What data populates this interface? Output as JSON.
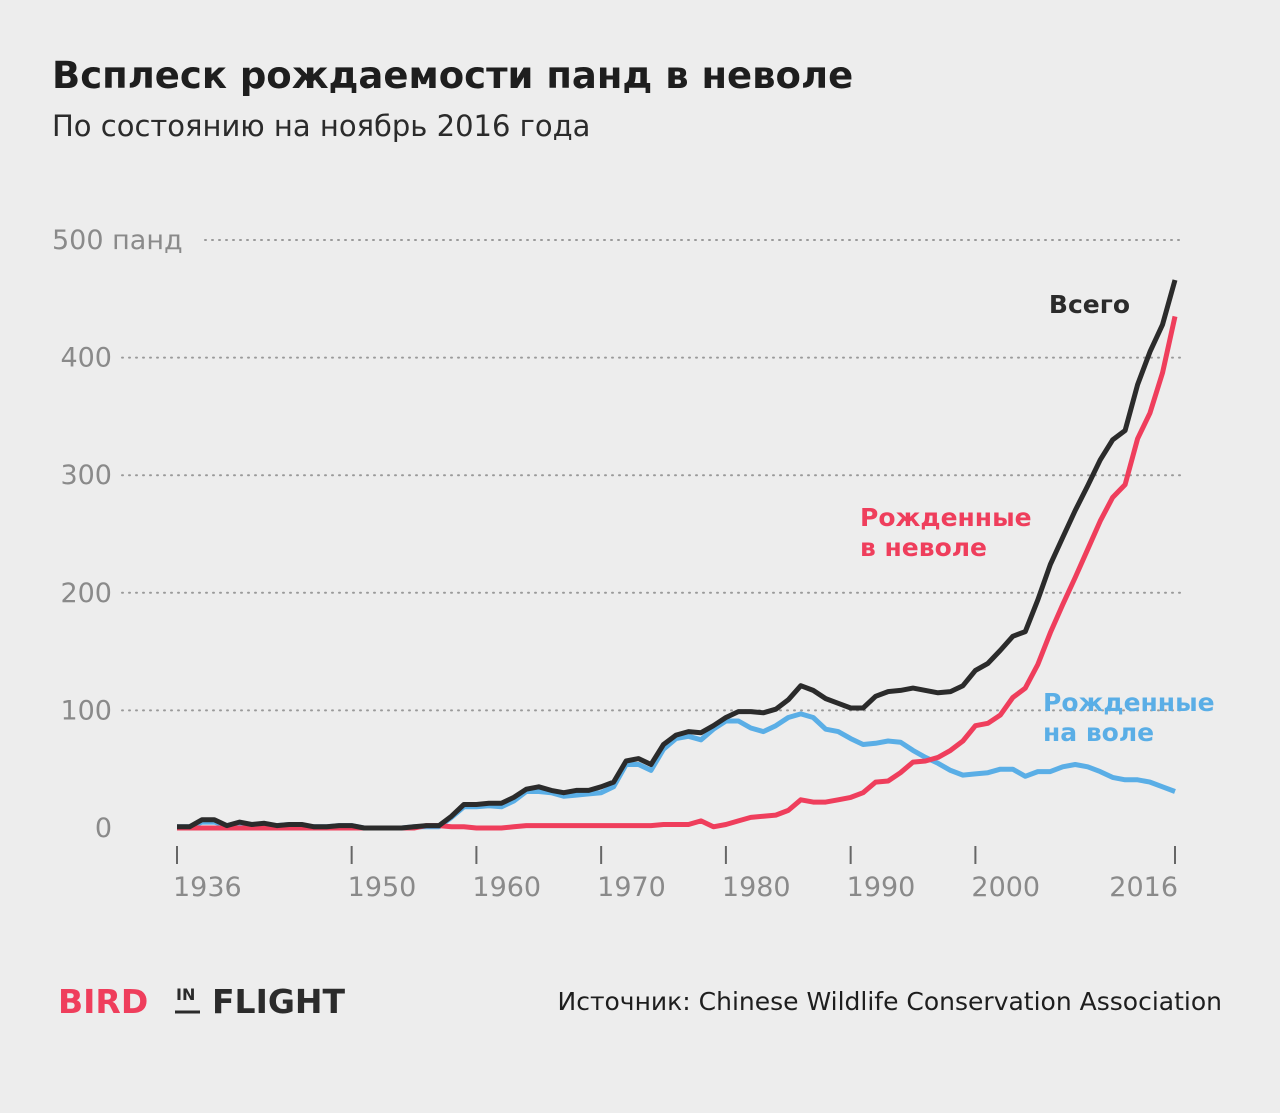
{
  "chart_data": {
    "type": "line",
    "title": "Всплеск рождаемости панд в неволе",
    "subtitle": "По состоянию на ноябрь 2016 года",
    "source": "Источник: Chinese Wildlife Conservation Association",
    "logo": {
      "first": "BIRD",
      "middle": "IN",
      "last": "FLIGHT"
    },
    "x": [
      1936,
      1937,
      1938,
      1939,
      1940,
      1941,
      1942,
      1943,
      1944,
      1945,
      1946,
      1947,
      1948,
      1949,
      1950,
      1951,
      1952,
      1953,
      1954,
      1955,
      1956,
      1957,
      1958,
      1959,
      1960,
      1961,
      1962,
      1963,
      1964,
      1965,
      1966,
      1967,
      1968,
      1969,
      1970,
      1971,
      1972,
      1973,
      1974,
      1975,
      1976,
      1977,
      1978,
      1979,
      1980,
      1981,
      1982,
      1983,
      1984,
      1985,
      1986,
      1987,
      1988,
      1989,
      1990,
      1991,
      1992,
      1993,
      1994,
      1995,
      1996,
      1997,
      1998,
      1999,
      2000,
      2001,
      2002,
      2003,
      2004,
      2005,
      2006,
      2007,
      2008,
      2009,
      2010,
      2011,
      2012,
      2013,
      2014,
      2015,
      2016
    ],
    "xlim": [
      1936,
      2016
    ],
    "xticks": [
      1936,
      1950,
      1960,
      1970,
      1980,
      1990,
      2000,
      2016
    ],
    "ylim": [
      0,
      500
    ],
    "yticks": [
      0,
      100,
      200,
      300,
      400,
      {
        "value": 500,
        "label": "500 панд"
      }
    ],
    "grid": true,
    "series": [
      {
        "name": "Рожденные на воле",
        "color": "#5aaee6",
        "values": [
          1,
          1,
          5,
          5,
          2,
          4,
          2,
          3,
          2,
          3,
          2,
          1,
          1,
          2,
          2,
          0,
          0,
          0,
          0,
          1,
          1,
          1,
          9,
          18,
          18,
          19,
          18,
          23,
          31,
          31,
          30,
          27,
          28,
          29,
          30,
          35,
          54,
          54,
          49,
          67,
          76,
          78,
          75,
          84,
          91,
          91,
          85,
          82,
          87,
          94,
          97,
          94,
          84,
          82,
          76,
          71,
          72,
          74,
          73,
          66,
          60,
          55,
          49,
          45,
          46,
          47,
          50,
          50,
          44,
          48,
          48,
          52,
          54,
          52,
          48,
          43,
          41,
          41,
          39,
          35,
          31
        ]
      },
      {
        "name": "Рожденные в неволе",
        "color": "#ef3e5c",
        "values": [
          0,
          0,
          0,
          0,
          0,
          0,
          0,
          0,
          0,
          0,
          0,
          0,
          0,
          0,
          0,
          0,
          0,
          0,
          0,
          0,
          2,
          2,
          1,
          1,
          0,
          0,
          0,
          1,
          2,
          2,
          2,
          2,
          2,
          2,
          2,
          2,
          2,
          2,
          2,
          3,
          3,
          3,
          6,
          1,
          3,
          6,
          9,
          10,
          11,
          15,
          24,
          22,
          22,
          24,
          26,
          30,
          39,
          40,
          47,
          56,
          57,
          60,
          66,
          74,
          87,
          89,
          96,
          111,
          119,
          139,
          166,
          190,
          213,
          237,
          261,
          281,
          292,
          331,
          353,
          387,
          435
        ]
      },
      {
        "name": "Всего",
        "color": "#2b2b2b",
        "values": [
          1,
          1,
          7,
          7,
          2,
          5,
          3,
          4,
          2,
          3,
          3,
          1,
          1,
          2,
          2,
          0,
          0,
          0,
          0,
          1,
          2,
          2,
          10,
          20,
          20,
          21,
          21,
          26,
          33,
          35,
          32,
          30,
          32,
          32,
          35,
          39,
          57,
          59,
          54,
          71,
          79,
          82,
          81,
          87,
          94,
          99,
          99,
          98,
          101,
          109,
          121,
          117,
          110,
          106,
          102,
          102,
          112,
          116,
          117,
          119,
          117,
          115,
          116,
          121,
          134,
          140,
          151,
          163,
          167,
          194,
          224,
          247,
          270,
          291,
          313,
          330,
          338,
          377,
          405,
          428,
          466
        ]
      }
    ]
  }
}
